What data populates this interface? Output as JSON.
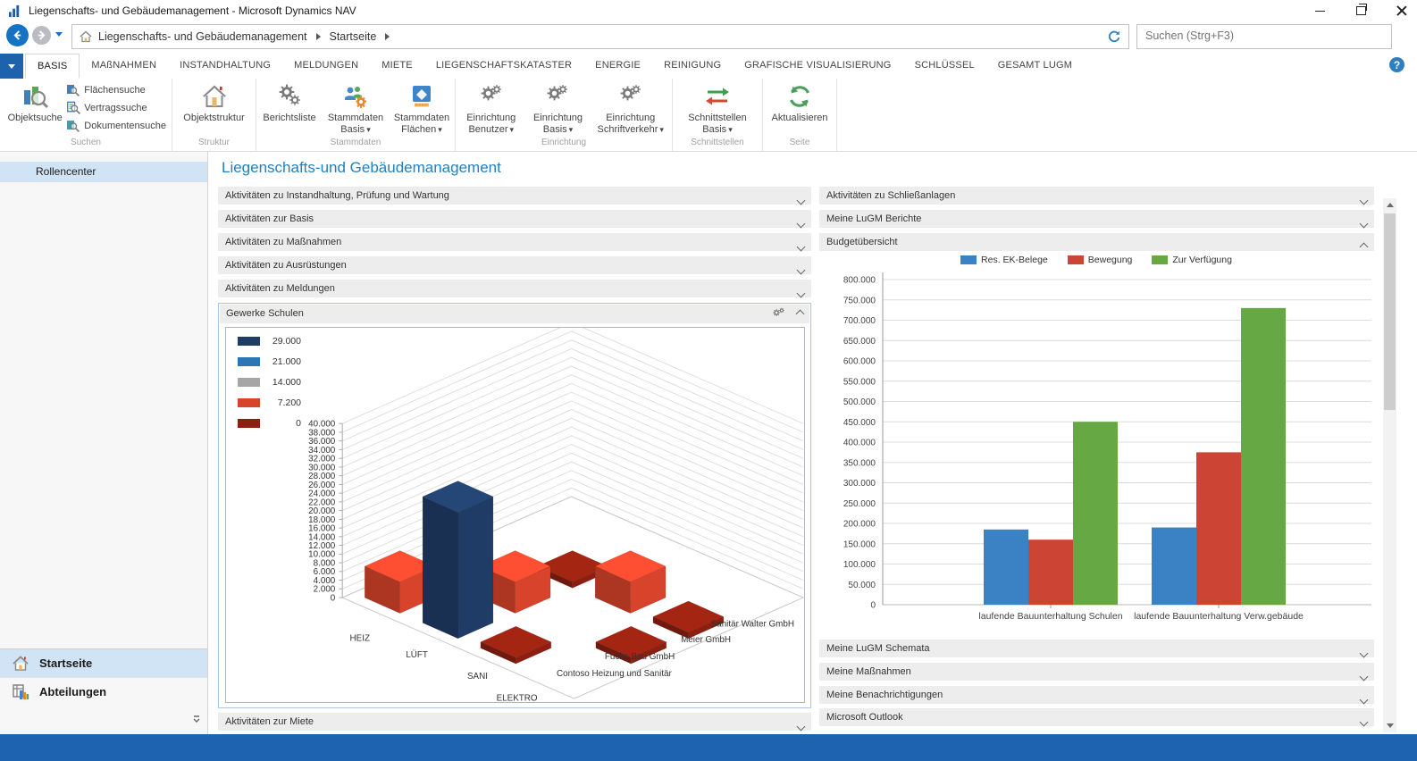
{
  "window": {
    "title": "Liegenschafts- und Gebäudemanagement - Microsoft Dynamics NAV"
  },
  "address_bar": {
    "breadcrumb_root": "Liegenschafts- und Gebäudemanagement",
    "breadcrumb_page": "Startseite",
    "search_placeholder": "Suchen (Strg+F3)"
  },
  "ribbon": {
    "tabs": [
      {
        "label": "BASIS"
      },
      {
        "label": "MAßNAHMEN"
      },
      {
        "label": "INSTANDHALTUNG"
      },
      {
        "label": "MELDUNGEN"
      },
      {
        "label": "MIETE"
      },
      {
        "label": "LIEGENSCHAFTSKATASTER"
      },
      {
        "label": "ENERGIE"
      },
      {
        "label": "REINIGUNG"
      },
      {
        "label": "GRAFISCHE VISUALISIERUNG"
      },
      {
        "label": "SCHLÜSSEL"
      },
      {
        "label": "GESAMT LUGM"
      }
    ],
    "active_tab": "BASIS",
    "groups": {
      "suchen": {
        "label": "Suchen",
        "objektsuche": "Objektsuche",
        "flaechensuche": "Flächensuche",
        "vertragssuche": "Vertragssuche",
        "dokumentensuche": "Dokumentensuche"
      },
      "struktur": {
        "label": "Struktur",
        "objektstruktur": "Objektstruktur"
      },
      "stammdaten": {
        "label": "Stammdaten",
        "berichtsliste": "Berichtsliste",
        "stammdaten_basis": "Stammdaten Basis",
        "stammdaten_flaechen": "Stammdaten Flächen"
      },
      "einrichtung": {
        "label": "Einrichtung",
        "benutzer": "Einrichtung Benutzer",
        "basis": "Einrichtung Basis",
        "schriftverkehr": "Einrichtung Schriftverkehr"
      },
      "schnittstellen": {
        "label": "Schnittstellen",
        "basis": "Schnittstellen Basis"
      },
      "seite": {
        "label": "Seite",
        "aktualisieren": "Aktualisieren"
      }
    }
  },
  "nav": {
    "rollencenter": "Rollencenter",
    "startseite": "Startseite",
    "abteilungen": "Abteilungen"
  },
  "main": {
    "title": "Liegenschafts-und Gebäudemanagement",
    "sections": [
      "Aktivitäten zu Instandhaltung, Prüfung und Wartung",
      "Aktivitäten zur Basis",
      "Aktivitäten zu Maßnahmen",
      "Aktivitäten zu Ausrüstungen",
      "Aktivitäten zu Meldungen"
    ],
    "chart_section_title": "Gewerke Schulen",
    "bottom_section": "Aktivitäten zur Miete"
  },
  "right_panel": {
    "top_sections": [
      "Aktivitäten zu Schließanlagen",
      "Meine LuGM Berichte"
    ],
    "chart_section_title": "Budgetübersicht",
    "bottom_sections": [
      "Meine LuGM Schemata",
      "Meine Maßnahmen",
      "Meine Benachrichtigungen",
      "Microsoft Outlook"
    ]
  },
  "chart_data": [
    {
      "name": "Gewerke Schulen",
      "type": "bar3d",
      "ylim": [
        0,
        40000
      ],
      "ytick_step": 2000,
      "x_categories": [
        "HEIZ",
        "LÜFT",
        "SANI",
        "ELEKTRO"
      ],
      "depth_categories": [
        "Contoso Heizung und Sanitär",
        "Fuchs Bau GmbH",
        "Meier GmbH",
        "Sanitär Walter GmbH"
      ],
      "legend": [
        {
          "value": 29000,
          "label": "29.000",
          "color": "#1f3c66"
        },
        {
          "value": 21000,
          "label": "21.000",
          "color": "#2e75b6"
        },
        {
          "value": 14000,
          "label": "14.000",
          "color": "#a6a6a6"
        },
        {
          "value": 7200,
          "label": "7.200",
          "color": "#d8432b"
        },
        {
          "value": 0,
          "label": "0",
          "color": "#8c1f10"
        }
      ],
      "bars": [
        {
          "x": "HEIZ",
          "depth": "Contoso Heizung und Sanitär",
          "value": 7200
        },
        {
          "x": "LÜFT",
          "depth": "Contoso Heizung und Sanitär",
          "value": 29000
        },
        {
          "x": "SANI",
          "depth": "Contoso Heizung und Sanitär",
          "value": 0
        },
        {
          "x": "LÜFT",
          "depth": "Fuchs Bau GmbH",
          "value": 7200
        },
        {
          "x": "ELEKTRO",
          "depth": "Fuchs Bau GmbH",
          "value": 0
        },
        {
          "x": "LÜFT",
          "depth": "Meier GmbH",
          "value": 0
        },
        {
          "x": "SANI",
          "depth": "Meier GmbH",
          "value": 7200
        },
        {
          "x": "ELEKTRO",
          "depth": "Meier GmbH",
          "value": 0
        }
      ]
    },
    {
      "name": "Budgetübersicht",
      "type": "bar",
      "categories": [
        "laufende Bauunterhaltung Schulen",
        "laufende Bauunterhaltung Verw.gebäude"
      ],
      "series": [
        {
          "name": "Res. EK-Belege",
          "color": "#3b82c4",
          "values": [
            185000,
            190000
          ]
        },
        {
          "name": "Bewegung",
          "color": "#cc4433",
          "values": [
            160000,
            375000
          ]
        },
        {
          "name": "Zur Verfügung",
          "color": "#65a844",
          "values": [
            450000,
            730000
          ]
        }
      ],
      "ylim": [
        0,
        800000
      ],
      "ytick_step": 50000,
      "grid": true,
      "legend_position": "top"
    }
  ]
}
